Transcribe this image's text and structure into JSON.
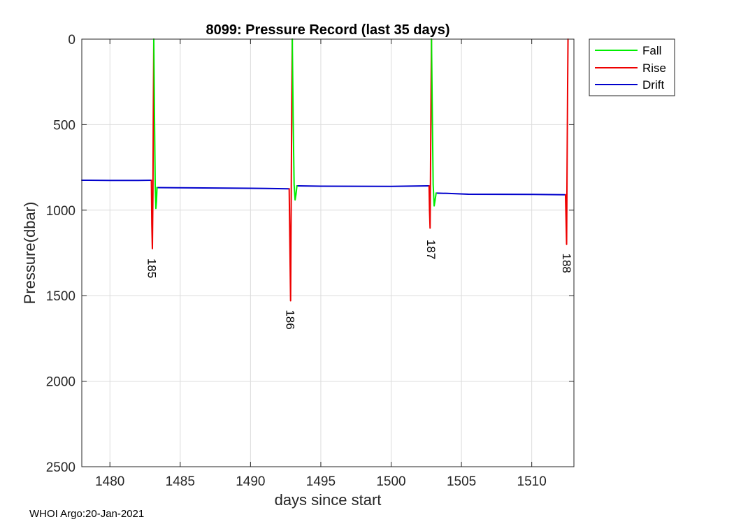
{
  "footer": "WHOI Argo:20-Jan-2021",
  "chart_data": {
    "type": "line",
    "title": "8099: Pressure Record (last 35 days)",
    "xlabel": "days since start",
    "ylabel": "Pressure(dbar)",
    "xlim": [
      1478,
      1513
    ],
    "ylim": [
      0,
      2500
    ],
    "y_reversed": true,
    "xticks": [
      1480,
      1485,
      1490,
      1495,
      1500,
      1505,
      1510
    ],
    "yticks": [
      0,
      500,
      1000,
      1500,
      2000,
      2500
    ],
    "grid": true,
    "legend_position": "outside-top-right",
    "legend": [
      "Fall",
      "Rise",
      "Drift"
    ],
    "colors": {
      "Fall": "#00ee00",
      "Rise": "#ee0000",
      "Drift": "#0000cc"
    },
    "series": [
      {
        "name": "Drift",
        "segments": [
          [
            [
              1478,
              825
            ],
            [
              1480,
              826
            ],
            [
              1482,
              826
            ],
            [
              1482.95,
              825
            ]
          ],
          [
            [
              1483.35,
              868
            ],
            [
              1485,
              869
            ],
            [
              1490,
              872
            ],
            [
              1492.75,
              875
            ]
          ],
          [
            [
              1493.3,
              858
            ],
            [
              1495,
              860
            ],
            [
              1500,
              861
            ],
            [
              1502.7,
              858
            ]
          ],
          [
            [
              1503.2,
              900
            ],
            [
              1504,
              902
            ],
            [
              1505.5,
              907
            ],
            [
              1510,
              908
            ],
            [
              1512.4,
              910
            ]
          ]
        ]
      },
      {
        "name": "Rise",
        "segments": [
          [
            [
              1482.95,
              825
            ],
            [
              1482.98,
              1080
            ],
            [
              1483.02,
              1225
            ],
            [
              1483.06,
              900
            ],
            [
              1483.09,
              400
            ],
            [
              1483.12,
              0
            ]
          ],
          [
            [
              1492.75,
              875
            ],
            [
              1492.8,
              1200
            ],
            [
              1492.85,
              1530
            ],
            [
              1492.89,
              1000
            ],
            [
              1492.93,
              400
            ],
            [
              1492.97,
              0
            ]
          ],
          [
            [
              1502.7,
              858
            ],
            [
              1502.73,
              1000
            ],
            [
              1502.77,
              1105
            ],
            [
              1502.8,
              800
            ],
            [
              1502.84,
              300
            ],
            [
              1502.87,
              0
            ]
          ],
          [
            [
              1512.4,
              910
            ],
            [
              1512.44,
              1050
            ],
            [
              1512.48,
              1200
            ],
            [
              1512.51,
              800
            ],
            [
              1512.55,
              300
            ],
            [
              1512.58,
              0
            ]
          ]
        ]
      },
      {
        "name": "Fall",
        "segments": [
          [
            [
              1483.12,
              0
            ],
            [
              1483.17,
              450
            ],
            [
              1483.22,
              850
            ],
            [
              1483.27,
              990
            ],
            [
              1483.31,
              950
            ],
            [
              1483.35,
              868
            ]
          ],
          [
            [
              1492.97,
              0
            ],
            [
              1493.03,
              450
            ],
            [
              1493.1,
              850
            ],
            [
              1493.17,
              940
            ],
            [
              1493.23,
              910
            ],
            [
              1493.3,
              858
            ]
          ],
          [
            [
              1502.87,
              0
            ],
            [
              1502.93,
              450
            ],
            [
              1502.99,
              850
            ],
            [
              1503.06,
              975
            ],
            [
              1503.13,
              940
            ],
            [
              1503.2,
              900
            ]
          ]
        ]
      }
    ],
    "annotations": [
      {
        "text": "185",
        "x": 1483.0,
        "y": 1340
      },
      {
        "text": "186",
        "x": 1492.85,
        "y": 1640
      },
      {
        "text": "187",
        "x": 1502.85,
        "y": 1230
      },
      {
        "text": "188",
        "x": 1512.5,
        "y": 1310
      }
    ]
  }
}
